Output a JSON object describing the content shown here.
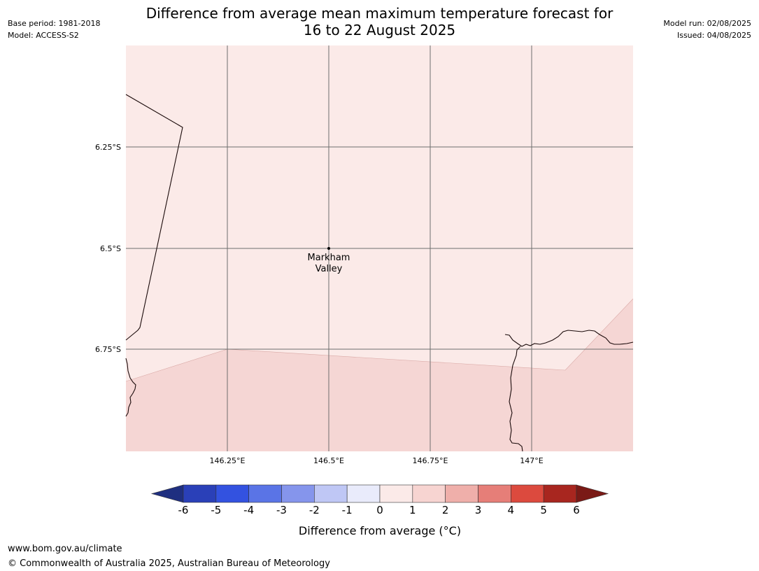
{
  "header": {
    "title_line1": "Difference from average mean maximum temperature forecast for",
    "title_line2": "16 to 22 August 2025",
    "base_period": "Base period: 1981-2018",
    "model": "Model: ACCESS-S2",
    "model_run": "Model run: 02/08/2025",
    "issued": "Issued: 04/08/2025"
  },
  "map": {
    "lat_labels": [
      "6.25°S",
      "6.5°S",
      "6.75°S"
    ],
    "lon_labels": [
      "146.25°E",
      "146.5°E",
      "146.75°E",
      "147°E"
    ],
    "place": {
      "name_line1": "Markham",
      "name_line2": "Valley"
    }
  },
  "colorbar": {
    "label": "Difference from average (°C)",
    "ticks": [
      "-6",
      "-5",
      "-4",
      "-3",
      "-2",
      "-1",
      "0",
      "1",
      "2",
      "3",
      "4",
      "5",
      "6"
    ],
    "colors": [
      "#1f2f80",
      "#2a40b8",
      "#3352e0",
      "#5a74e6",
      "#8595ec",
      "#bfc7f5",
      "#e9ebfb",
      "#fbeae8",
      "#f7d4d1",
      "#efafaa",
      "#e67e78",
      "#dc4a3e",
      "#a8261f",
      "#7a1a16"
    ]
  },
  "map_colors": {
    "zone_0_1": "#fbeae8",
    "zone_1_2": "#f5d6d4"
  },
  "footer": {
    "url": "www.bom.gov.au/climate",
    "copyright": "© Commonwealth of Australia 2025, Australian Bureau of Meteorology"
  }
}
